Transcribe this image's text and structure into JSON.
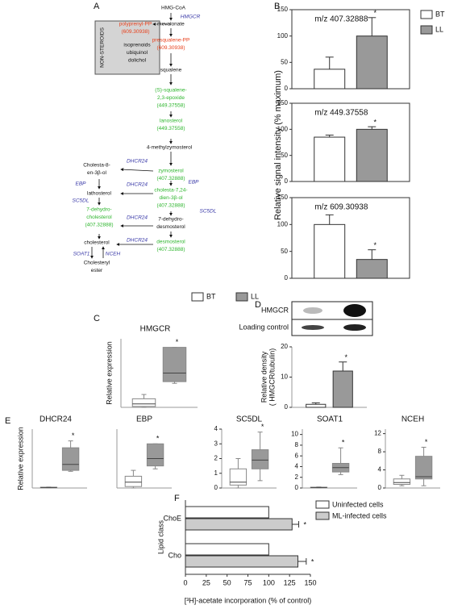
{
  "panel_labels": [
    "A",
    "B",
    "C",
    "D",
    "E",
    "F"
  ],
  "diagram": {
    "box_label": "NON-STEROIDS",
    "nodes": [
      {
        "lines": [
          "HMG-CoA"
        ],
        "color": "#111111"
      },
      {
        "lines": [
          "HMGCR"
        ],
        "color": "#3a3aa8"
      },
      {
        "lines": [
          "mevalonate"
        ],
        "color": "#111111"
      },
      {
        "lines": [
          "polyprenyl-PP",
          "(609.30938)"
        ],
        "color": "#e8401c"
      },
      {
        "lines": [
          "isoprenoids",
          "ubiquinol",
          "dolichol"
        ],
        "color": "#111111"
      },
      {
        "lines": [
          "presqualene-PP",
          "(609.30938)"
        ],
        "color": "#e8401c"
      },
      {
        "lines": [
          "squalene"
        ],
        "color": "#111111"
      },
      {
        "lines": [
          "(S)-squalene-",
          "2,3-epoxide",
          "(449.37558)"
        ],
        "color": "#2db52d"
      },
      {
        "lines": [
          "lanosterol",
          "(449.37558)"
        ],
        "color": "#2db52d"
      },
      {
        "lines": [
          "4-methylzymosterol"
        ],
        "color": "#111111"
      },
      {
        "lines": [
          "zymosterol",
          "(407.32888)"
        ],
        "color": "#2db52d"
      },
      {
        "lines": [
          "EBP"
        ],
        "color": "#3a3aa8"
      },
      {
        "lines": [
          "cholesta-7,24-",
          "dien-3β-ol",
          "(407.32888)"
        ],
        "color": "#2db52d"
      },
      {
        "lines": [
          "SC5DL"
        ],
        "color": "#3a3aa8"
      },
      {
        "lines": [
          "7-dehydro-",
          "desmosterol"
        ],
        "color": "#111111"
      },
      {
        "lines": [
          "desmosterol",
          "(407.32888)"
        ],
        "color": "#2db52d"
      },
      {
        "lines": [
          "Cholesta-8-",
          "en-3β-ol"
        ],
        "color": "#111111"
      },
      {
        "lines": [
          "DHCR24"
        ],
        "color": "#3a3aa8"
      },
      {
        "lines": [
          "EBP"
        ],
        "color": "#3a3aa8"
      },
      {
        "lines": [
          "DHCR24"
        ],
        "color": "#3a3aa8"
      },
      {
        "lines": [
          "lathosterol"
        ],
        "color": "#111111"
      },
      {
        "lines": [
          "SC5DL"
        ],
        "color": "#3a3aa8"
      },
      {
        "lines": [
          "7-dehydro-",
          "cholesterol",
          "(407.32888)"
        ],
        "color": "#2db52d"
      },
      {
        "lines": [
          "DHCR24"
        ],
        "color": "#3a3aa8"
      },
      {
        "lines": [
          "cholesterol"
        ],
        "color": "#111111"
      },
      {
        "lines": [
          "DHCR24"
        ],
        "color": "#3a3aa8"
      },
      {
        "lines": [
          "SOAT1"
        ],
        "color": "#3a3aa8"
      },
      {
        "lines": [
          "NCEH"
        ],
        "color": "#3a3aa8"
      },
      {
        "lines": [
          "Cholesteryl",
          "ester"
        ],
        "color": "#111111"
      }
    ]
  },
  "legend": [
    {
      "name": "BT",
      "color": "#ffffff"
    },
    {
      "name": "LL",
      "color": "#999999"
    }
  ],
  "blot": {
    "labels": [
      "HMGCR",
      "Loading control"
    ]
  },
  "chart_data": [
    {
      "type": "bar",
      "annotation": "m/z 407.32888",
      "ylabel": "Relative signal intensity (% maximum)",
      "ylim": [
        0,
        150
      ],
      "yticks": [
        0,
        50,
        100,
        150
      ],
      "significance": "*",
      "series": [
        {
          "name": "BT",
          "color": "#ffffff",
          "values": [
            37
          ],
          "errors": [
            23
          ]
        },
        {
          "name": "LL",
          "color": "#999999",
          "values": [
            100
          ],
          "errors": [
            35
          ]
        }
      ]
    },
    {
      "type": "bar",
      "annotation": "m/z 449.37558",
      "ylim": [
        0,
        150
      ],
      "yticks": [
        0,
        50,
        100,
        150
      ],
      "significance": "*",
      "series": [
        {
          "color": "#ffffff",
          "values": [
            85
          ],
          "errors": [
            4
          ]
        },
        {
          "color": "#999999",
          "values": [
            100
          ],
          "errors": [
            5
          ]
        }
      ]
    },
    {
      "type": "bar",
      "annotation": "m/z 609.30938",
      "ylim": [
        0,
        150
      ],
      "yticks": [
        0,
        50,
        100,
        150
      ],
      "significance": "*",
      "series": [
        {
          "color": "#ffffff",
          "values": [
            100
          ],
          "errors": [
            18
          ]
        },
        {
          "color": "#999999",
          "values": [
            35
          ],
          "errors": [
            18
          ]
        }
      ]
    },
    {
      "type": "box",
      "title": "HMGCR",
      "ylabel": [
        "Relative expression"
      ],
      "ylim": [
        0,
        4
      ],
      "significance": "*",
      "boxes": [
        {
          "color": "#ffffff",
          "min": 0,
          "q1": 0.05,
          "median": 0.2,
          "q3": 0.5,
          "max": 0.75
        },
        {
          "color": "#999999",
          "min": 1.4,
          "q1": 1.5,
          "median": 2,
          "q3": 3.5,
          "max": 3.5
        }
      ]
    },
    {
      "type": "bar",
      "ylabel": [
        "Relative density",
        "( HMGCR/tubulin)"
      ],
      "ylim": [
        0,
        20
      ],
      "yticks": [
        0,
        10,
        20
      ],
      "significance": "*",
      "series": [
        {
          "color": "#ffffff",
          "values": [
            1
          ],
          "errors": [
            0.5
          ]
        },
        {
          "color": "#999999",
          "values": [
            12
          ],
          "errors": [
            3
          ]
        }
      ]
    },
    {
      "type": "box",
      "title": "DHCR24",
      "ylabel": [
        "Relative expression"
      ],
      "ylim": [
        0,
        6
      ],
      "significance": "*",
      "boxes": [
        {
          "color": "#ffffff",
          "min": 0,
          "q1": 0.02,
          "median": 0.05,
          "q3": 0.08,
          "max": 0.1
        },
        {
          "color": "#999999",
          "min": 1.7,
          "q1": 1.8,
          "median": 2.4,
          "q3": 4.1,
          "max": 4.8
        }
      ]
    },
    {
      "type": "box",
      "title": "EBP",
      "ylim": [
        0,
        4
      ],
      "significance": "*",
      "boxes": [
        {
          "color": "#ffffff",
          "min": 0,
          "q1": 0.1,
          "median": 0.4,
          "q3": 0.8,
          "max": 1.2
        },
        {
          "color": "#999999",
          "min": 1.3,
          "q1": 1.5,
          "median": 2,
          "q3": 3,
          "max": 3
        }
      ]
    },
    {
      "type": "box",
      "title": "SC5DL",
      "ylim": [
        0,
        4
      ],
      "yticks": [
        0,
        1,
        2,
        3,
        4
      ],
      "significance": "*",
      "boxes": [
        {
          "color": "#ffffff",
          "min": 0,
          "q1": 0.2,
          "median": 0.4,
          "q3": 1.3,
          "max": 2
        },
        {
          "color": "#999999",
          "min": 0.5,
          "q1": 1.3,
          "median": 1.9,
          "q3": 2.6,
          "max": 3.8
        }
      ]
    },
    {
      "type": "box",
      "title": "SOAT1",
      "ylim": [
        0,
        11
      ],
      "yticks": [
        0,
        2,
        4,
        6,
        8,
        10
      ],
      "significance": "*",
      "boxes": [
        {
          "color": "#ffffff",
          "min": 0,
          "q1": 0.05,
          "median": 0.1,
          "q3": 0.15,
          "max": 0.2
        },
        {
          "color": "#999999",
          "min": 2.5,
          "q1": 3,
          "median": 3.8,
          "q3": 4.6,
          "max": 7.5
        }
      ]
    },
    {
      "type": "box",
      "title": "NCEH",
      "ylim": [
        0,
        13
      ],
      "yticks": [
        0,
        4,
        8,
        12
      ],
      "significance": "*",
      "boxes": [
        {
          "color": "#ffffff",
          "min": 0.5,
          "q1": 0.8,
          "median": 1.2,
          "q3": 2,
          "max": 2.8
        },
        {
          "color": "#999999",
          "min": 0.5,
          "q1": 2,
          "median": 2.5,
          "q3": 7,
          "max": 9
        }
      ]
    },
    {
      "type": "hbar",
      "xlabel": "[³H]-acetate incorporation (% of control)",
      "ylabel": "Lipid class",
      "categories": [
        "ChoE",
        "Cho"
      ],
      "xlim": [
        0,
        150
      ],
      "xticks": [
        0,
        25,
        50,
        75,
        100,
        125,
        150
      ],
      "significance": "*",
      "series": [
        {
          "name": "Uninfected cells",
          "color": "#ffffff",
          "values": [
            100,
            100
          ]
        },
        {
          "name": "ML-infected cells",
          "color": "#cccccc",
          "values": [
            128,
            135
          ],
          "errors": [
            8,
            10
          ]
        }
      ]
    }
  ]
}
